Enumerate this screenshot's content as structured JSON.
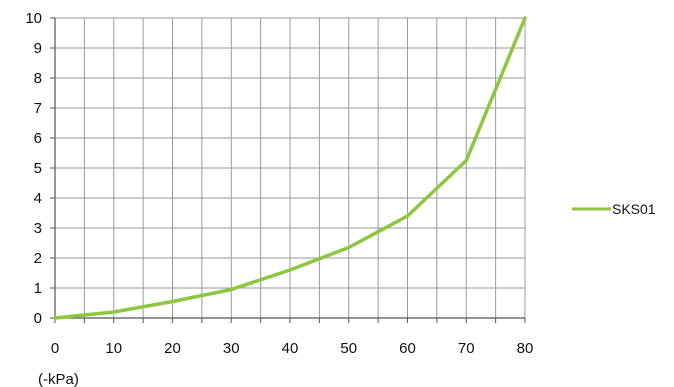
{
  "chart_data": {
    "type": "line",
    "title": "",
    "xlabel": "(-kPa)",
    "ylabel": "",
    "xlim": [
      0,
      80
    ],
    "ylim": [
      0,
      10
    ],
    "x_ticks": [
      "0",
      "10",
      "20",
      "30",
      "40",
      "50",
      "60",
      "70",
      "80"
    ],
    "y_ticks": [
      "0",
      "1",
      "2",
      "3",
      "4",
      "5",
      "6",
      "7",
      "8",
      "9",
      "10"
    ],
    "grid": true,
    "legend_position": "right",
    "series": [
      {
        "name": "SKS01",
        "color": "#8dc63f",
        "x": [
          0,
          10,
          20,
          30,
          40,
          50,
          60,
          70,
          80
        ],
        "y": [
          0,
          0.2,
          0.55,
          0.95,
          1.6,
          2.35,
          3.4,
          5.25,
          10
        ]
      }
    ]
  }
}
